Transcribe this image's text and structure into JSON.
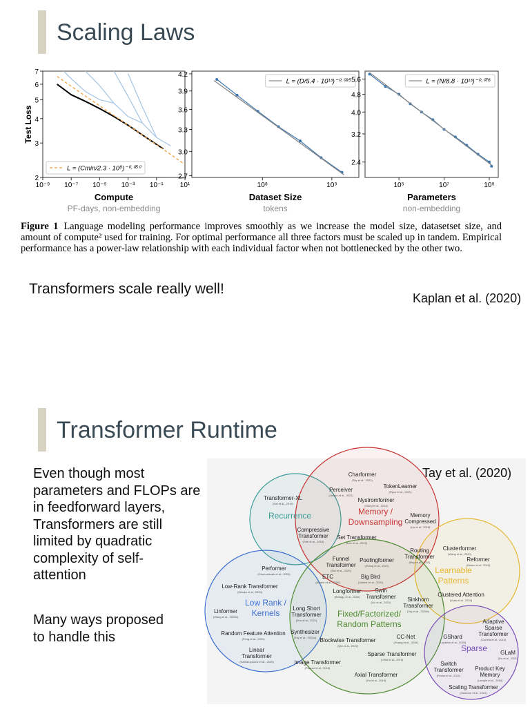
{
  "slide_1": {
    "title": "Scaling Laws",
    "caption": {
      "label": "Figure 1",
      "text": "Language modeling performance improves smoothly as we increase the model size, datasetset size, and amount of compute² used for training. For optimal performance all three factors must be scaled up in tandem. Empirical performance has a power-law relationship with each individual factor when not bottlenecked by the other two."
    },
    "remark": "Transformers scale really well!",
    "citation": "Kaplan et al. (2020)"
  },
  "chart_data": [
    {
      "type": "line",
      "xlabel": "Compute",
      "xsublabel": "PF-days, non-embedding",
      "ylabel": "Test Loss",
      "xscale": "log",
      "yscale": "log",
      "xlim": [
        1e-09,
        10
      ],
      "ylim": [
        2,
        7
      ],
      "xticks": [
        {
          "value": 1e-09,
          "label": "10⁻⁹"
        },
        {
          "value": 1e-07,
          "label": "10⁻⁷"
        },
        {
          "value": 1e-05,
          "label": "10⁻⁵"
        },
        {
          "value": 0.001,
          "label": "10⁻³"
        },
        {
          "value": 0.1,
          "label": "10⁻¹"
        },
        {
          "value": 10,
          "label": "10¹"
        }
      ],
      "yticks": [
        2,
        3,
        4,
        5,
        6,
        7
      ],
      "legend": "lower left",
      "series": [
        {
          "color": "#a9c8e6",
          "style": "line",
          "x": [
            3e-08,
            1e-07,
            1e-06,
            1e-05,
            0.0001
          ],
          "values": [
            7,
            6.4,
            5.5,
            5.0,
            4.8
          ]
        },
        {
          "color": "#a9c8e6",
          "style": "line",
          "x": [
            1e-06,
            1e-05,
            0.0001,
            0.001,
            0.01
          ],
          "values": [
            7,
            5.9,
            4.8,
            4.1,
            3.8
          ]
        },
        {
          "color": "#a9c8e6",
          "style": "line",
          "x": [
            0.0001,
            0.001,
            0.01,
            0.1
          ],
          "values": [
            7,
            5.2,
            3.8,
            3.2
          ]
        },
        {
          "color": "#a9c8e6",
          "style": "line",
          "x": [
            0.001,
            0.01,
            0.1,
            1
          ],
          "values": [
            6.8,
            4.6,
            3.2,
            2.9
          ]
        },
        {
          "color": "#000000",
          "style": "line",
          "x": [
            1e-08,
            1e-07,
            1e-06,
            1e-05,
            0.0001,
            0.001,
            0.01,
            0.1,
            0.3
          ],
          "values": [
            6.0,
            5.3,
            4.9,
            4.5,
            4.1,
            3.7,
            3.3,
            2.95,
            2.8
          ]
        },
        {
          "name": "L = (Cmin/2.3 · 10⁸)⁻⁰·⁰⁵⁰",
          "color": "#f0a040",
          "style": "dashed",
          "x": [
            1e-08,
            1e-07,
            1e-06,
            1e-05,
            0.0001,
            0.001,
            0.01,
            0.1,
            1,
            10
          ],
          "values": [
            6.58,
            5.86,
            5.22,
            4.65,
            4.15,
            3.7,
            3.3,
            2.94,
            2.62,
            2.33
          ]
        }
      ]
    },
    {
      "type": "line",
      "xlabel": "Dataset Size",
      "xsublabel": "tokens",
      "xscale": "log",
      "yscale": "log",
      "xlim": [
        9600000,
        2450000000
      ],
      "ylim": [
        2.68,
        4.25
      ],
      "xticks": [
        {
          "value": 100000000,
          "label": "10⁸"
        },
        {
          "value": 1000000000,
          "label": "10⁹"
        }
      ],
      "yticks": [
        2.7,
        {
          "value": 3.0,
          "label": "3.0"
        },
        3.3,
        3.6,
        3.9,
        4.2
      ],
      "legend": "upper right",
      "series": [
        {
          "color": "#3b76af",
          "style": "markers",
          "x": [
            22000000,
            43000000,
            86000000,
            170000000,
            350000000,
            700000000,
            1400000000
          ],
          "values": [
            4.1,
            3.83,
            3.57,
            3.34,
            3.14,
            2.92,
            2.74
          ]
        },
        {
          "name": "L = (D/5.4 · 10¹³)⁻⁰·⁰⁹⁵",
          "color": "#888888",
          "style": "line",
          "x": [
            20000000,
            1500000000
          ],
          "values": [
            4.08,
            2.71
          ]
        }
      ]
    },
    {
      "type": "line",
      "xlabel": "Parameters",
      "xsublabel": "non-embedding",
      "xscale": "log",
      "yscale": "log",
      "xlim": [
        3160,
        2500000000
      ],
      "ylim": [
        2.05,
        6.08
      ],
      "xticks": [
        {
          "value": 100000,
          "label": "10⁵"
        },
        {
          "value": 10000000,
          "label": "10⁷"
        },
        {
          "value": 1000000000,
          "label": "10⁹"
        }
      ],
      "yticks": [
        2.4,
        3.2,
        {
          "value": 4.0,
          "label": "4.0"
        },
        4.8,
        5.6
      ],
      "legend": "upper right",
      "series": [
        {
          "color": "#3b76af",
          "style": "markers",
          "x": [
            5012,
            25119,
            100000,
            316228,
            1000000,
            3162278,
            10000000,
            31622777,
            100000000,
            316227766,
            1000000000,
            1258925412
          ],
          "values": [
            5.9,
            5.2,
            4.8,
            4.35,
            4.0,
            3.7,
            3.35,
            3.1,
            2.85,
            2.6,
            2.4,
            2.3
          ]
        },
        {
          "name": "L = (N/8.8 · 10¹³)⁻⁰·⁰⁷⁶",
          "color": "#888888",
          "style": "line",
          "x": [
            5000,
            1300000000
          ],
          "values": [
            5.99,
            2.32
          ]
        }
      ]
    }
  ],
  "slide_2": {
    "title": "Transformer Runtime",
    "paragraphs": [
      [
        "Even though most",
        "parameters and FLOPs are",
        "in feedforward layers,",
        "Transformers are still",
        "limited by quadratic",
        "complexity of self-",
        "attention"
      ],
      [
        "Many ways proposed",
        "to handle this"
      ]
    ],
    "citation": "Tay et al. (2020)",
    "diagram": {
      "groups": [
        {
          "lines": [
            "Recurrence"
          ],
          "color": "#3a9a96"
        },
        {
          "lines": [
            "Memory /",
            "Downsampling"
          ],
          "color": "#c83232"
        },
        {
          "lines": [
            "Learnable",
            "Patterns"
          ],
          "color": "#e6b830"
        },
        {
          "lines": [
            "Low Rank /",
            "Kernels"
          ],
          "color": "#3b6fd0"
        },
        {
          "lines": [
            "Fixed/Factorized/",
            "Random Patterns"
          ],
          "color": "#4f8a30"
        },
        {
          "lines": [
            "Sparse"
          ],
          "color": "#7a4fb8"
        }
      ],
      "methods": [
        {
          "lines": [
            "Charformer"
          ],
          "cite": "(Tay et al., 2021)"
        },
        {
          "lines": [
            "TokenLearner"
          ],
          "cite": "(Ryoo et al., 2021)"
        },
        {
          "lines": [
            "Perceiver"
          ],
          "cite": "(Jaegle et al., 2021)"
        },
        {
          "lines": [
            "Transformer-XL"
          ],
          "cite": "(Dai et al., 2019)"
        },
        {
          "lines": [
            "Nystromformer"
          ],
          "cite": "(Xiong et al., 2019)"
        },
        {
          "lines": [
            "Memory",
            "Compressed"
          ],
          "cite": "(Liu et al., 2018)"
        },
        {
          "lines": [
            "Compressive",
            "Transformer"
          ],
          "cite": "(Rae et al., 2018)"
        },
        {
          "lines": [
            "Set Transformer"
          ],
          "cite": "(Lee et al., 2019)"
        },
        {
          "lines": [
            "Clusterformer"
          ],
          "cite": "(Wang et al., 2020)"
        },
        {
          "lines": [
            "Routing",
            "Transformer"
          ],
          "cite": "(Roy et al., 2020)"
        },
        {
          "lines": [
            "Reformer"
          ],
          "cite": "(Kitaev et al., 2020)"
        },
        {
          "lines": [
            "Performer"
          ],
          "cite": "(Choromanski et al., 2020)"
        },
        {
          "lines": [
            "Funnel",
            "Transformer"
          ],
          "cite": "(Dai et al., 2020)"
        },
        {
          "lines": [
            "Poolingformer"
          ],
          "cite": "(Zhang et al., 2021)"
        },
        {
          "lines": [
            "ETC"
          ],
          "cite": "(Ainslie et al., 2020)"
        },
        {
          "lines": [
            "Big Bird"
          ],
          "cite": "(Zaheer et al., 2020)"
        },
        {
          "lines": [
            "Low-Rank Transformer"
          ],
          "cite": "(Winata et al., 2020)"
        },
        {
          "lines": [
            "Longformer"
          ],
          "cite": "(Beltagy et al., 2020)"
        },
        {
          "lines": [
            "Swin",
            "Transformer"
          ],
          "cite": "(Liu et al., 2021)"
        },
        {
          "lines": [
            "Clustered Attention"
          ],
          "cite": "(Vyas et al., 2020)"
        },
        {
          "lines": [
            "Sinkhorn",
            "Transformer"
          ],
          "cite": "(Tay et al., 2020b)"
        },
        {
          "lines": [
            "Linformer"
          ],
          "cite": "(Wang et al., 2020b)"
        },
        {
          "lines": [
            "Long Short",
            "Transformer"
          ],
          "cite": "(Zhu et al., 2021)"
        },
        {
          "lines": [
            "Synthesizer"
          ],
          "cite": "(Tay et al., 2020a)"
        },
        {
          "lines": [
            "Random Feature Attention"
          ],
          "cite": "(Peng et al., 2021)"
        },
        {
          "lines": [
            "Blockwise Transformer"
          ],
          "cite": "(Qiu et al., 2019)"
        },
        {
          "lines": [
            "CC-Net"
          ],
          "cite": "(Huang et al., 2018)"
        },
        {
          "lines": [
            "GShard"
          ],
          "cite": "(Lepikhin et al., 2020)"
        },
        {
          "lines": [
            "Adaptive",
            "Sparse",
            "Transformer"
          ],
          "cite": "(Correia et al., 2019)"
        },
        {
          "lines": [
            "GLaM"
          ],
          "cite": "(Du et al., 2021)"
        },
        {
          "lines": [
            "Linear",
            "Transformer"
          ],
          "cite": "(Katharopoulos et al., 2020)"
        },
        {
          "lines": [
            "Sparse Transformer"
          ],
          "cite": "(Child et al., 2019)"
        },
        {
          "lines": [
            "Image Transformer"
          ],
          "cite": "(Parmar et al., 2018)"
        },
        {
          "lines": [
            "Switch",
            "Transformer"
          ],
          "cite": "(Fedus et al., 2021)"
        },
        {
          "lines": [
            "Product Key",
            "Memory"
          ],
          "cite": "(Lample et al., 2019)"
        },
        {
          "lines": [
            "Axial Transformer"
          ],
          "cite": "(Ho et al., 2019)"
        },
        {
          "lines": [
            "Scaling Transformer"
          ],
          "cite": "(Jaszczur et al., 2021)"
        }
      ]
    }
  }
}
